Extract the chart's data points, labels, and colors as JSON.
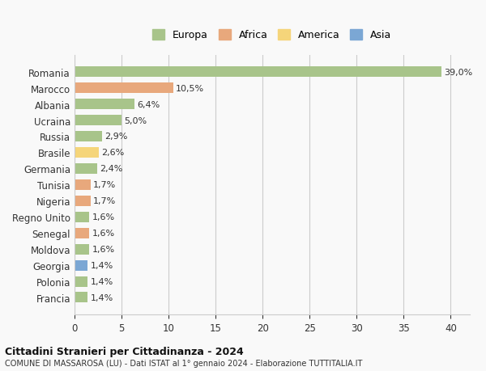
{
  "countries": [
    "Francia",
    "Polonia",
    "Georgia",
    "Moldova",
    "Senegal",
    "Regno Unito",
    "Nigeria",
    "Tunisia",
    "Germania",
    "Brasile",
    "Russia",
    "Ucraina",
    "Albania",
    "Marocco",
    "Romania"
  ],
  "values": [
    1.4,
    1.4,
    1.4,
    1.6,
    1.6,
    1.6,
    1.7,
    1.7,
    2.4,
    2.6,
    2.9,
    5.0,
    6.4,
    10.5,
    39.0
  ],
  "labels": [
    "1,4%",
    "1,4%",
    "1,4%",
    "1,6%",
    "1,6%",
    "1,6%",
    "1,7%",
    "1,7%",
    "2,4%",
    "2,6%",
    "2,9%",
    "5,0%",
    "6,4%",
    "10,5%",
    "39,0%"
  ],
  "continents": [
    "Europa",
    "Europa",
    "Asia",
    "Europa",
    "Africa",
    "Europa",
    "Africa",
    "Africa",
    "Europa",
    "America",
    "Europa",
    "Europa",
    "Europa",
    "Africa",
    "Europa"
  ],
  "colors": {
    "Europa": "#a8c48a",
    "Africa": "#e8a87c",
    "America": "#f5d57a",
    "Asia": "#7ba7d4"
  },
  "legend_colors": {
    "Europa": "#a8c48a",
    "Africa": "#e8a87c",
    "America": "#f5d57a",
    "Asia": "#7ba7d4"
  },
  "xlim": [
    0,
    42
  ],
  "xticks": [
    0,
    5,
    10,
    15,
    20,
    25,
    30,
    35,
    40
  ],
  "title": "Cittadini Stranieri per Cittadinanza - 2024",
  "subtitle": "COMUNE DI MASSAROSA (LU) - Dati ISTAT al 1° gennaio 2024 - Elaborazione TUTTITALIA.IT",
  "background_color": "#f9f9f9",
  "grid_color": "#cccccc"
}
